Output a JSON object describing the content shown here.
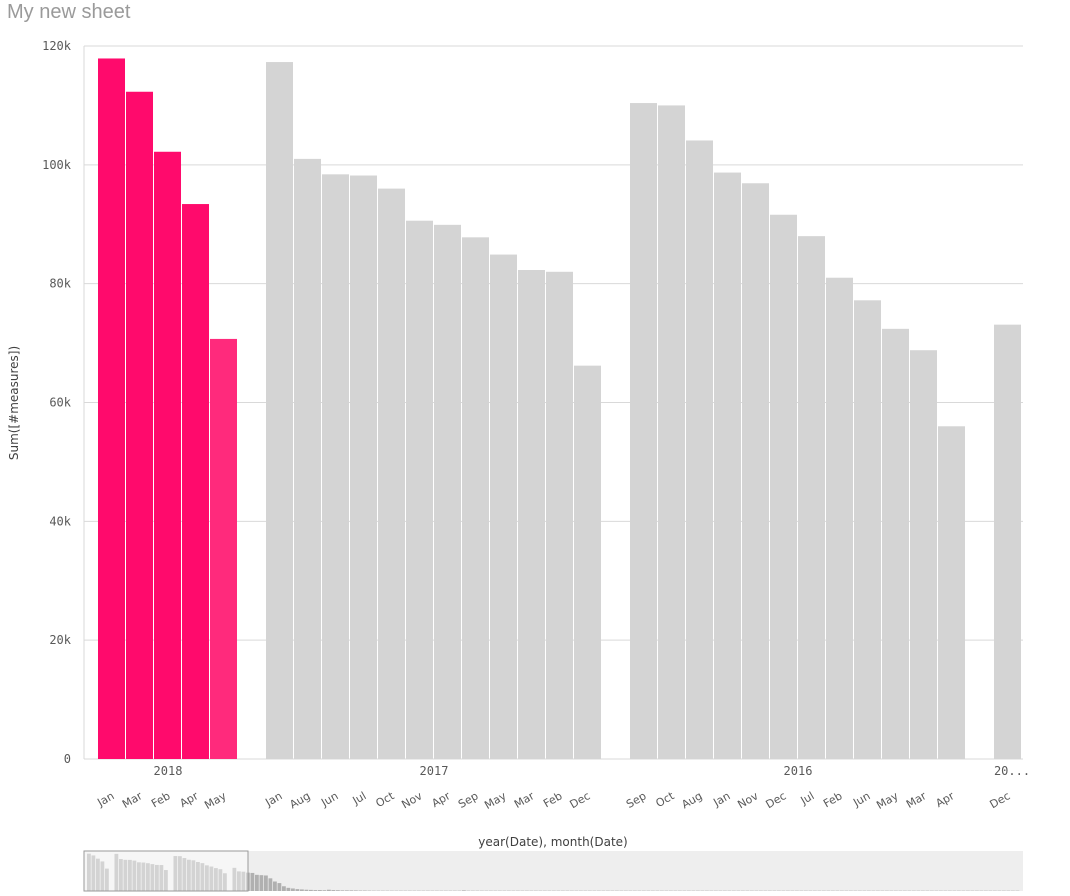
{
  "sheet": {
    "title": "My new sheet"
  },
  "colors": {
    "selected": "#ff0a6c",
    "selected_last": "#ff2a7c",
    "unselected": "#d4d4d4",
    "grid": "#d9d9d9",
    "nav_bg": "#eeeeee",
    "nav_bar": "#b0b0b0"
  },
  "chart_data": {
    "type": "bar",
    "title": "",
    "xlabel": "year(Date), month(Date)",
    "ylabel": "Sum([#measures])",
    "ylim": [
      0,
      120000
    ],
    "y_ticks": [
      "0",
      "20k",
      "40k",
      "60k",
      "80k",
      "100k",
      "120k"
    ],
    "grid": true,
    "groups": [
      {
        "year": "2018",
        "year_label": "2018",
        "selected": true,
        "bars": [
          {
            "month": "Jan",
            "value": 117900
          },
          {
            "month": "Mar",
            "value": 112300
          },
          {
            "month": "Feb",
            "value": 102200
          },
          {
            "month": "Apr",
            "value": 93400
          },
          {
            "month": "May",
            "value": 70700
          }
        ]
      },
      {
        "year": "2017",
        "year_label": "2017",
        "selected": false,
        "bars": [
          {
            "month": "Jan",
            "value": 117300
          },
          {
            "month": "Aug",
            "value": 101000
          },
          {
            "month": "Jun",
            "value": 98400
          },
          {
            "month": "Jul",
            "value": 98200
          },
          {
            "month": "Oct",
            "value": 96000
          },
          {
            "month": "Nov",
            "value": 90600
          },
          {
            "month": "Apr",
            "value": 89900
          },
          {
            "month": "Sep",
            "value": 87800
          },
          {
            "month": "May",
            "value": 84900
          },
          {
            "month": "Mar",
            "value": 82300
          },
          {
            "month": "Feb",
            "value": 82000
          },
          {
            "month": "Dec",
            "value": 66200
          }
        ]
      },
      {
        "year": "2016",
        "year_label": "2016",
        "selected": false,
        "bars": [
          {
            "month": "Sep",
            "value": 110400
          },
          {
            "month": "Oct",
            "value": 110000
          },
          {
            "month": "Aug",
            "value": 104100
          },
          {
            "month": "Jan",
            "value": 98700
          },
          {
            "month": "Nov",
            "value": 96900
          },
          {
            "month": "Dec",
            "value": 91600
          },
          {
            "month": "Jul",
            "value": 88000
          },
          {
            "month": "Feb",
            "value": 81000
          },
          {
            "month": "Jun",
            "value": 77200
          },
          {
            "month": "May",
            "value": 72400
          },
          {
            "month": "Mar",
            "value": 68800
          },
          {
            "month": "Apr",
            "value": 56000
          }
        ]
      },
      {
        "year": "2015",
        "year_label": "20...",
        "selected": false,
        "bars": [
          {
            "month": "Dec",
            "value": 73100
          }
        ]
      }
    ]
  },
  "navigator": {
    "values": [
      117900,
      112300,
      102200,
      93400,
      70700,
      117300,
      101000,
      98400,
      98200,
      96000,
      90600,
      89900,
      87800,
      84900,
      82300,
      82000,
      66200,
      110400,
      110000,
      104100,
      98700,
      96900,
      91600,
      88000,
      81000,
      77200,
      72400,
      68800,
      56000,
      73100,
      62000,
      61000,
      58000,
      57000,
      51000,
      50000,
      49000,
      40000,
      30000,
      25000,
      15000,
      10000,
      8000,
      6000,
      5000,
      4000,
      3500,
      3000,
      3000,
      2500,
      4000,
      3000,
      2500,
      2000,
      2000,
      2000,
      1800,
      1500,
      1500,
      1200,
      1000,
      1000,
      1000,
      1000,
      1000,
      1000,
      1000,
      1000,
      1000,
      1000,
      1000,
      1000,
      1000,
      1000,
      1000,
      1000,
      1000,
      1000,
      1000,
      1000,
      2000,
      1000,
      1000,
      1000,
      1000,
      1000,
      1000,
      1000,
      1000,
      1000,
      1000,
      1000,
      1000,
      1000,
      1000,
      1000,
      1000,
      1000,
      1000,
      1000,
      1000,
      1000,
      1000,
      1000,
      1000,
      1000,
      1000,
      1000,
      1000,
      1000,
      1000,
      1000,
      1000,
      1000,
      1000,
      1000,
      1000,
      1000,
      1000,
      1000,
      1000,
      1000,
      1000,
      1000,
      1000,
      1000,
      1000,
      1000,
      1000,
      1000,
      1000,
      1000,
      1000,
      1000,
      1000,
      1000,
      1000,
      1000,
      1000,
      1000,
      1000,
      1000,
      1000,
      1000,
      1000,
      1000,
      1000,
      1000,
      1000,
      1000,
      1000,
      1000,
      1000,
      1000,
      1000,
      1000,
      1000,
      1000,
      1000,
      1000,
      1000,
      1000,
      1000,
      1000,
      1000,
      1000,
      1000,
      1000,
      1000,
      1000,
      1000,
      1000,
      1000,
      1000,
      1000,
      1000,
      1000,
      1000,
      1000,
      1000,
      1000,
      1000,
      1000,
      1000,
      1000,
      1000,
      1000,
      1000,
      1000,
      1000,
      1000,
      1000,
      1000,
      1000,
      1000,
      1000,
      1000,
      1000,
      1000,
      1000,
      1000,
      1000,
      1000,
      1000,
      1000,
      1000,
      1000,
      1000,
      1000,
      1000,
      1000,
      1000,
      1000,
      1000,
      1000,
      1000,
      1000,
      1000,
      1000,
      1000,
      1000,
      1000,
      1000,
      1000,
      1000,
      1000,
      1000,
      1000,
      1000,
      1000,
      1000,
      1000,
      1000,
      1000,
      1000,
      1000,
      1000,
      1000,
      1000,
      1000,
      1000,
      1000,
      1000,
      1000,
      1000,
      1000,
      1000,
      1000,
      1000,
      1000,
      1000,
      1000,
      1000,
      1000,
      1000,
      1000,
      1000,
      1000,
      1000,
      1000,
      1000,
      1000,
      1000,
      1000,
      1000,
      1000,
      1000,
      1000,
      1000,
      1000,
      1000,
      1000,
      1000,
      1000,
      1000,
      1000,
      1000,
      1000,
      1000,
      1000,
      1000,
      1000,
      1000,
      1000,
      1000,
      1000,
      1000,
      1000,
      1000,
      1000,
      1000,
      1000,
      1000,
      1000,
      1000,
      1000,
      1000
    ],
    "ymax": 120000
  }
}
